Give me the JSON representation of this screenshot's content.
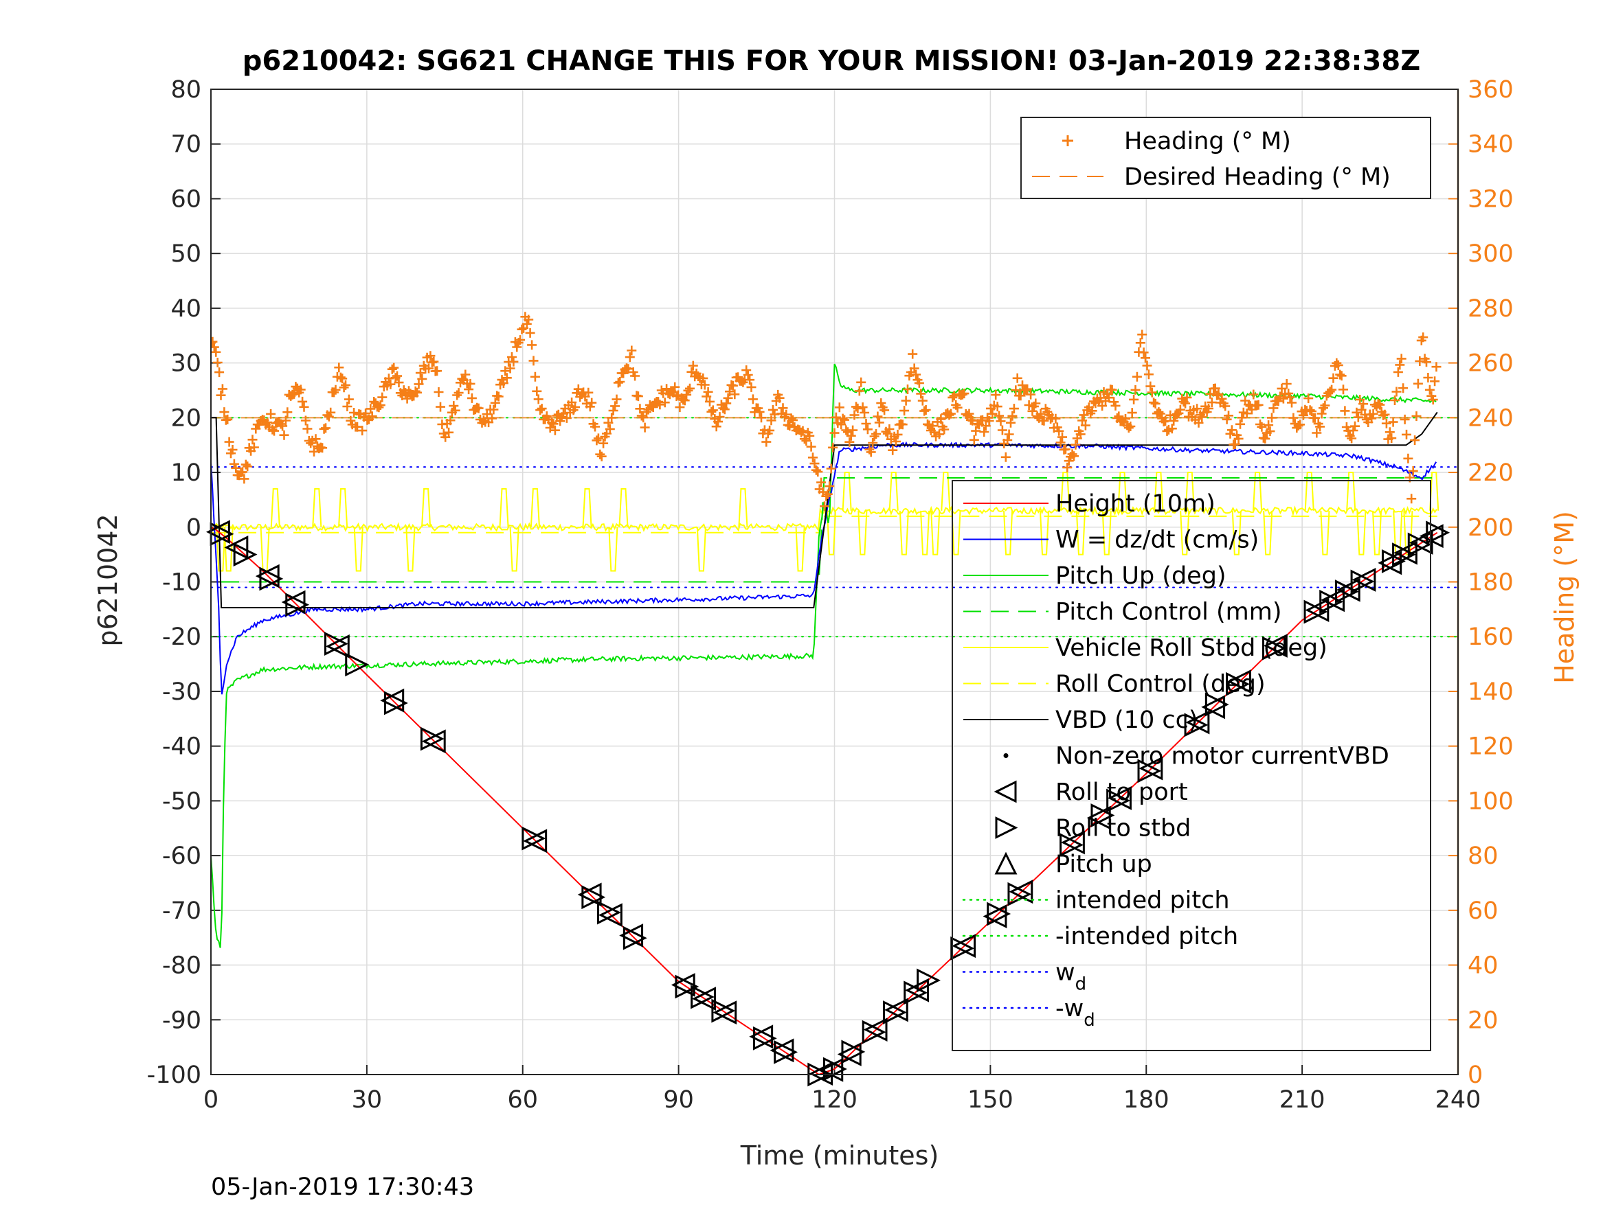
{
  "chart_data": {
    "type": "line",
    "title": "p6210042: SG621 CHANGE THIS FOR YOUR MISSION! 03-Jan-2019 22:38:38Z",
    "xlabel": "Time (minutes)",
    "ylabel": "p6210042",
    "ylabel_right": "Heading (°M)",
    "xlim": [
      0,
      240
    ],
    "ylim": [
      -100,
      80
    ],
    "ylim_right": [
      0,
      360
    ],
    "xticks": [
      "0",
      "30",
      "60",
      "90",
      "120",
      "150",
      "180",
      "210",
      "240"
    ],
    "yticks": [
      "80",
      "70",
      "60",
      "50",
      "40",
      "30",
      "20",
      "10",
      "0",
      "-10",
      "-20",
      "-30",
      "-40",
      "-50",
      "-60",
      "-70",
      "-80",
      "-90",
      "-100"
    ],
    "yticks_right": [
      "360",
      "340",
      "320",
      "300",
      "280",
      "260",
      "240",
      "220",
      "200",
      "180",
      "160",
      "140",
      "120",
      "100",
      "80",
      "60",
      "40",
      "20",
      "0"
    ],
    "grid": true,
    "footer": "05-Jan-2019 17:30:43",
    "colors": {
      "height": "#ff0000",
      "w": "#0000ff",
      "pitch": "#00e000",
      "roll": "#ffff00",
      "vbd": "#000000",
      "heading": "#f57f17"
    },
    "legend_top": {
      "placement": "top-right",
      "entries": [
        {
          "label": "Heading (° M)",
          "style": "plus",
          "color": "#f57f17"
        },
        {
          "label": "Desired Heading (° M)",
          "style": "dash",
          "color": "#f57f17"
        }
      ]
    },
    "legend_main": {
      "placement": "right",
      "entries": [
        {
          "label": "Height (10m)",
          "style": "line",
          "color": "#ff0000"
        },
        {
          "label": "W = dz/dt (cm/s)",
          "style": "line",
          "color": "#0000ff"
        },
        {
          "label": "Pitch Up (deg)",
          "style": "line",
          "color": "#00e000"
        },
        {
          "label": "Pitch Control (mm)",
          "style": "dash",
          "color": "#00e000"
        },
        {
          "label": "Vehicle Roll Stbd (deg)",
          "style": "line",
          "color": "#ffff00"
        },
        {
          "label": "Roll Control (deg)",
          "style": "dash",
          "color": "#ffff00"
        },
        {
          "label": "VBD (10 cc)",
          "style": "line",
          "color": "#000000"
        },
        {
          "label": "Non-zero motor currentVBD",
          "style": "dot",
          "color": "#000000"
        },
        {
          "label": "Roll to port",
          "style": "tri-left",
          "color": "#000000"
        },
        {
          "label": "Roll to stbd",
          "style": "tri-right",
          "color": "#000000"
        },
        {
          "label": "Pitch up",
          "style": "tri-up",
          "color": "#000000"
        },
        {
          "label": "intended pitch",
          "style": "dot-line",
          "color": "#00e000"
        },
        {
          "label": "-intended pitch",
          "style": "dot-line",
          "color": "#00e000"
        },
        {
          "label": "w",
          "sub": "d",
          "style": "dot-line",
          "color": "#0000ff"
        },
        {
          "label": "-w",
          "sub": "d",
          "style": "dot-line",
          "color": "#0000ff"
        }
      ]
    },
    "reference_lines": {
      "intended_pitch": 20,
      "neg_intended_pitch": -20,
      "w_d": 11,
      "neg_w_d": -11,
      "desired_heading_deg": 240
    },
    "series": [
      {
        "name": "Height (10m)",
        "x": [
          0,
          1,
          3,
          10,
          30,
          60,
          90,
          117,
          120,
          150,
          180,
          210,
          236
        ],
        "y": [
          0,
          -0.5,
          -2,
          -8,
          -27,
          -55,
          -83,
          -100,
          -99,
          -72,
          -45,
          -17,
          -1
        ]
      },
      {
        "name": "W = dz/dt (cm/s)",
        "x": [
          0,
          1.5,
          2,
          3,
          5,
          10,
          15,
          20,
          30,
          40,
          60,
          80,
          100,
          116,
          117,
          119,
          121,
          130,
          150,
          170,
          190,
          210,
          220,
          228,
          233,
          236
        ],
        "y": [
          12,
          -15,
          -31,
          -25,
          -20,
          -17,
          -16,
          -15,
          -15,
          -14,
          -14,
          -13.5,
          -13,
          -12.5,
          -5,
          5,
          14,
          15,
          15,
          14.8,
          14,
          13.5,
          13,
          11,
          9,
          12
        ]
      },
      {
        "name": "Pitch Up (deg)",
        "x": [
          0,
          1,
          2,
          2.5,
          3,
          5,
          10,
          20,
          40,
          60,
          80,
          100,
          116,
          117,
          118,
          119,
          120,
          121,
          123,
          130,
          150,
          180,
          210,
          236
        ],
        "y": [
          -60,
          -75,
          -77,
          -45,
          -30,
          -28,
          -26,
          -25.5,
          -25,
          -24.5,
          -24,
          -23.8,
          -23.5,
          -2,
          5,
          0,
          30,
          26,
          25,
          25,
          25,
          24.5,
          24,
          23
        ]
      },
      {
        "name": "Pitch Control (mm)",
        "x": [
          2,
          117,
          118,
          236
        ],
        "y": [
          -10,
          -10,
          9,
          9
        ]
      },
      {
        "name": "VBD (10 cc)",
        "x": [
          0,
          1,
          2,
          116,
          118,
          120,
          230,
          233,
          236
        ],
        "y": [
          20,
          20,
          -14.7,
          -14.7,
          0,
          15,
          15,
          17,
          21
        ]
      },
      {
        "name": "Heading (° M)",
        "axis": "right",
        "x": [
          0,
          1,
          2,
          3,
          4,
          5,
          6,
          8,
          10,
          12,
          14,
          15,
          17,
          19,
          21,
          23,
          25,
          27,
          29,
          31,
          33,
          35,
          37,
          39,
          41,
          43,
          45,
          47,
          49,
          51,
          53,
          55,
          57,
          59,
          61,
          63,
          65,
          67,
          69,
          71,
          73,
          75,
          77,
          79,
          81,
          83,
          85,
          87,
          89,
          91,
          93,
          95,
          97,
          99,
          101,
          103,
          105,
          107,
          109,
          111,
          113,
          115,
          117,
          118,
          119,
          120,
          121,
          123,
          125,
          127,
          129,
          131,
          133,
          135,
          137,
          139,
          141,
          143,
          145,
          147,
          149,
          151,
          153,
          155,
          157,
          159,
          161,
          163,
          165,
          167,
          169,
          171,
          173,
          175,
          177,
          179,
          181,
          183,
          185,
          187,
          189,
          191,
          193,
          195,
          197,
          199,
          201,
          203,
          205,
          207,
          209,
          211,
          213,
          215,
          217,
          219,
          221,
          223,
          225,
          227,
          229,
          231,
          233,
          235,
          236
        ],
        "y": [
          268,
          262,
          250,
          240,
          228,
          222,
          218,
          230,
          240,
          238,
          235,
          246,
          250,
          232,
          228,
          244,
          258,
          240,
          238,
          242,
          248,
          256,
          250,
          246,
          258,
          262,
          232,
          245,
          256,
          242,
          238,
          246,
          256,
          268,
          276,
          244,
          237,
          239,
          242,
          250,
          246,
          225,
          240,
          257,
          262,
          237,
          244,
          248,
          250,
          244,
          258,
          253,
          237,
          245,
          252,
          256,
          242,
          233,
          246,
          240,
          236,
          232,
          218,
          208,
          214,
          236,
          242,
          230,
          252,
          226,
          244,
          230,
          238,
          262,
          246,
          234,
          238,
          246,
          246,
          234,
          238,
          246,
          226,
          252,
          248,
          242,
          240,
          236,
          222,
          234,
          242,
          246,
          250,
          238,
          236,
          270,
          250,
          238,
          238,
          248,
          240,
          242,
          250,
          246,
          230,
          244,
          246,
          232,
          245,
          250,
          236,
          245,
          236,
          248,
          262,
          232,
          244,
          240,
          246,
          232,
          262,
          210,
          270,
          245,
          258
        ]
      },
      {
        "name": "Desired Heading (° M)",
        "axis": "right",
        "x": [
          0,
          240
        ],
        "y": [
          240,
          240
        ]
      }
    ],
    "markers": {
      "roll_to_port": {
        "x": [
          1.5,
          5,
          11,
          16,
          24.5,
          35,
          43,
          62.5,
          73,
          77,
          81,
          91,
          95,
          99,
          106,
          110,
          117.5,
          119.5,
          123,
          128,
          132,
          136,
          145,
          151,
          156,
          166,
          171,
          175,
          181,
          190,
          193,
          198,
          205,
          213,
          216,
          219,
          222,
          227,
          230,
          233,
          235
        ]
      },
      "roll_to_stbd": {
        "x": [
          2,
          6.5,
          11.5,
          16.5,
          24,
          28,
          35.5,
          42.5,
          62,
          73.5,
          76.5,
          81.5,
          91.5,
          94.5,
          98.5,
          106.5,
          110.5,
          117,
          120,
          123.5,
          127.5,
          131.5,
          135.5,
          138,
          144.5,
          151.5,
          155.5,
          165.5,
          171.5,
          174.5,
          180.5,
          189.5,
          193.5,
          197.5,
          204.5,
          212.5,
          215.5,
          218.5,
          221.5,
          227.5,
          229.5,
          232.5,
          236
        ]
      }
    }
  }
}
